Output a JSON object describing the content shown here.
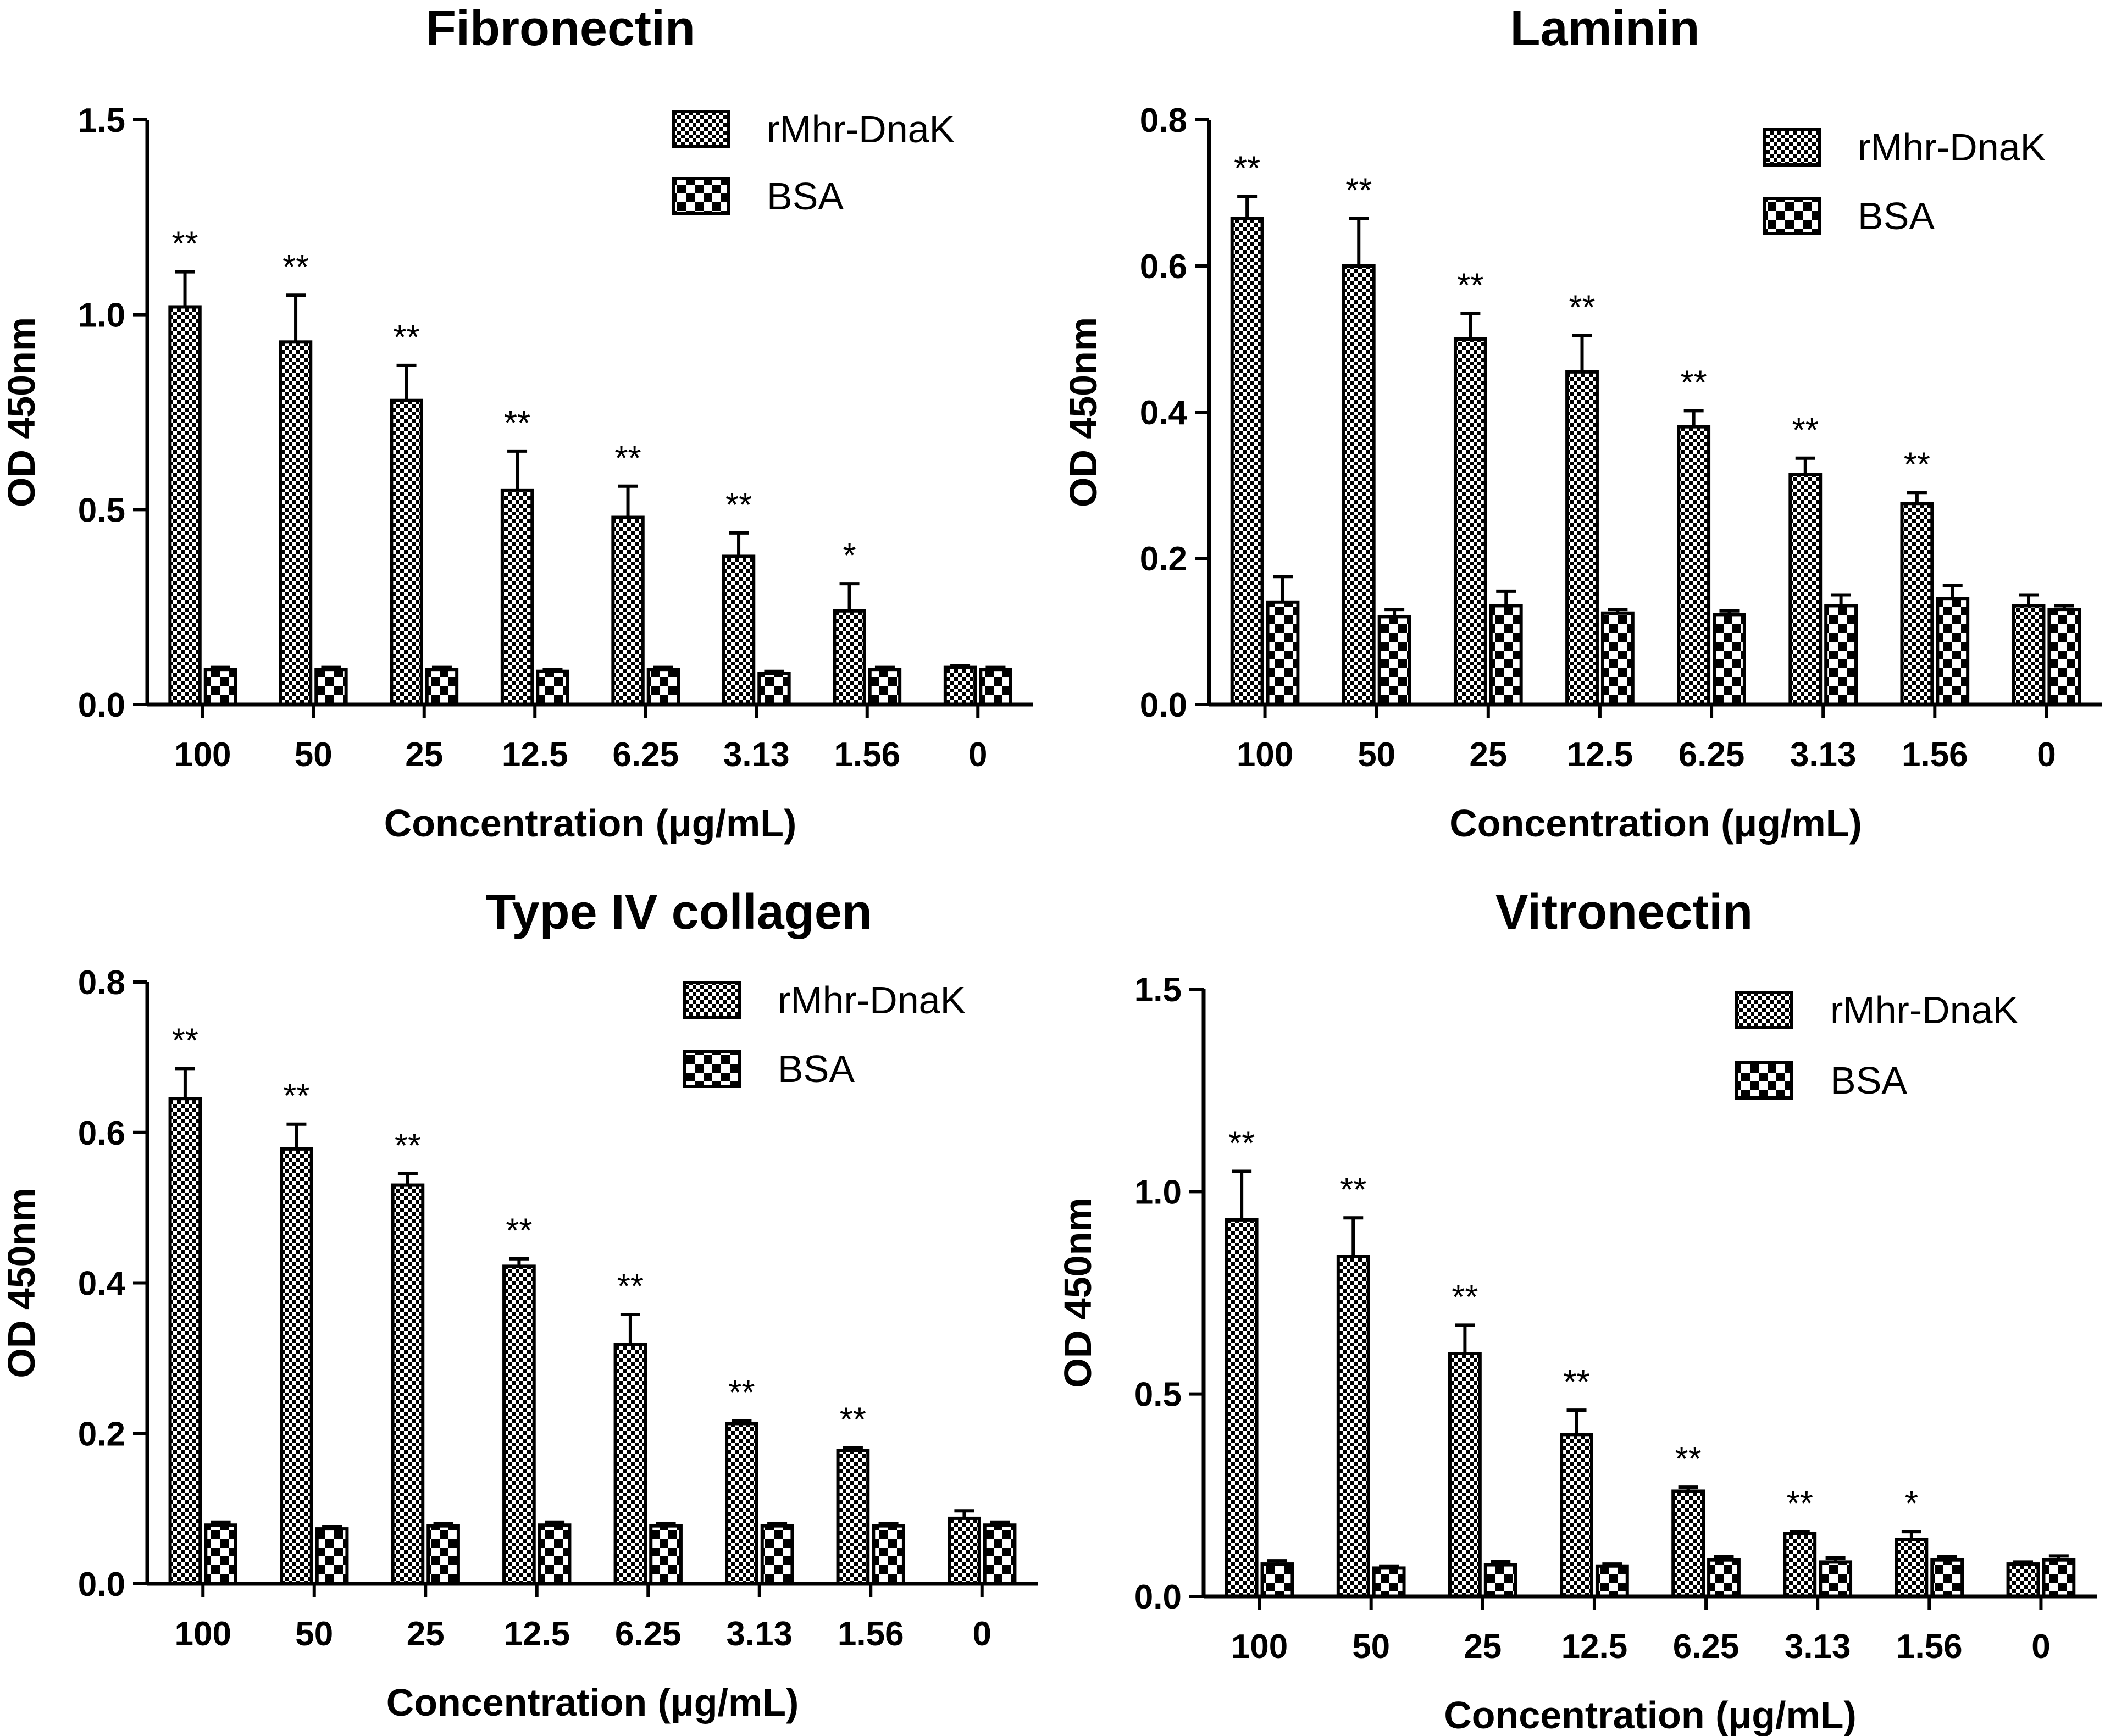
{
  "chart_data": [
    {
      "type": "bar",
      "title": "Fibronectin",
      "xlabel": "Concentration (μg/mL)",
      "ylabel": "OD 450nm",
      "categories": [
        "100",
        "50",
        "25",
        "12.5",
        "6.25",
        "3.13",
        "1.56",
        "0"
      ],
      "ylim": [
        0,
        1.5
      ],
      "yticks": [
        "0.0",
        "0.5",
        "1.0",
        "1.5"
      ],
      "series": [
        {
          "name": "rMhr-DnaK",
          "values": [
            1.02,
            0.93,
            0.78,
            0.55,
            0.48,
            0.38,
            0.24,
            0.095
          ],
          "errors": [
            0.09,
            0.12,
            0.09,
            0.1,
            0.08,
            0.06,
            0.07,
            0.005
          ]
        },
        {
          "name": "BSA",
          "values": [
            0.09,
            0.09,
            0.09,
            0.085,
            0.09,
            0.08,
            0.09,
            0.09
          ],
          "errors": [
            0.005,
            0.005,
            0.005,
            0.005,
            0.005,
            0.005,
            0.005,
            0.005
          ]
        }
      ],
      "significance": [
        "**",
        "**",
        "**",
        "**",
        "**",
        "**",
        "*",
        ""
      ],
      "legend": "top-right"
    },
    {
      "type": "bar",
      "title": "Laminin",
      "xlabel": "Concentration (μg/mL)",
      "ylabel": "OD 450nm",
      "categories": [
        "100",
        "50",
        "25",
        "12.5",
        "6.25",
        "3.13",
        "1.56",
        "0"
      ],
      "ylim": [
        0,
        0.8
      ],
      "yticks": [
        "0.0",
        "0.2",
        "0.4",
        "0.6",
        "0.8"
      ],
      "series": [
        {
          "name": "rMhr-DnaK",
          "values": [
            0.665,
            0.6,
            0.5,
            0.455,
            0.38,
            0.315,
            0.275,
            0.135
          ],
          "errors": [
            0.03,
            0.065,
            0.035,
            0.05,
            0.022,
            0.022,
            0.015,
            0.015
          ]
        },
        {
          "name": "BSA",
          "values": [
            0.14,
            0.12,
            0.135,
            0.125,
            0.123,
            0.135,
            0.145,
            0.13
          ],
          "errors": [
            0.035,
            0.01,
            0.02,
            0.005,
            0.005,
            0.015,
            0.018,
            0.005
          ]
        }
      ],
      "significance": [
        "**",
        "**",
        "**",
        "**",
        "**",
        "**",
        "**",
        ""
      ],
      "legend": "top-right"
    },
    {
      "type": "bar",
      "title": "Type IV collagen",
      "xlabel": "Concentration (μg/mL)",
      "ylabel": "OD 450nm",
      "categories": [
        "100",
        "50",
        "25",
        "12.5",
        "6.25",
        "3.13",
        "1.56",
        "0"
      ],
      "ylim": [
        0,
        0.8
      ],
      "yticks": [
        "0.0",
        "0.2",
        "0.4",
        "0.6",
        "0.8"
      ],
      "series": [
        {
          "name": "rMhr-DnaK",
          "values": [
            0.645,
            0.578,
            0.53,
            0.422,
            0.318,
            0.213,
            0.177,
            0.087
          ],
          "errors": [
            0.04,
            0.033,
            0.015,
            0.01,
            0.04,
            0.004,
            0.004,
            0.01
          ]
        },
        {
          "name": "BSA",
          "values": [
            0.078,
            0.073,
            0.077,
            0.078,
            0.077,
            0.077,
            0.077,
            0.078
          ],
          "errors": [
            0.004,
            0.003,
            0.003,
            0.004,
            0.003,
            0.003,
            0.003,
            0.004
          ]
        }
      ],
      "significance": [
        "**",
        "**",
        "**",
        "**",
        "**",
        "**",
        "**",
        ""
      ],
      "legend": "top-right"
    },
    {
      "type": "bar",
      "title": "Vitronectin",
      "xlabel": "Concentration (μg/mL)",
      "ylabel": "OD 450nm",
      "categories": [
        "100",
        "50",
        "25",
        "12.5",
        "6.25",
        "3.13",
        "1.56",
        "0"
      ],
      "ylim": [
        0,
        1.5
      ],
      "yticks": [
        "0.0",
        "0.5",
        "1.0",
        "1.5"
      ],
      "series": [
        {
          "name": "rMhr-DnaK",
          "values": [
            0.93,
            0.84,
            0.6,
            0.4,
            0.26,
            0.155,
            0.14,
            0.08
          ],
          "errors": [
            0.12,
            0.095,
            0.07,
            0.06,
            0.01,
            0.005,
            0.02,
            0.005
          ]
        },
        {
          "name": "BSA",
          "values": [
            0.08,
            0.07,
            0.078,
            0.075,
            0.09,
            0.085,
            0.09,
            0.09
          ],
          "errors": [
            0.008,
            0.005,
            0.008,
            0.005,
            0.008,
            0.01,
            0.008,
            0.01
          ]
        }
      ],
      "significance": [
        "**",
        "**",
        "**",
        "**",
        "**",
        "**",
        "*",
        ""
      ],
      "legend": "top-right"
    }
  ]
}
